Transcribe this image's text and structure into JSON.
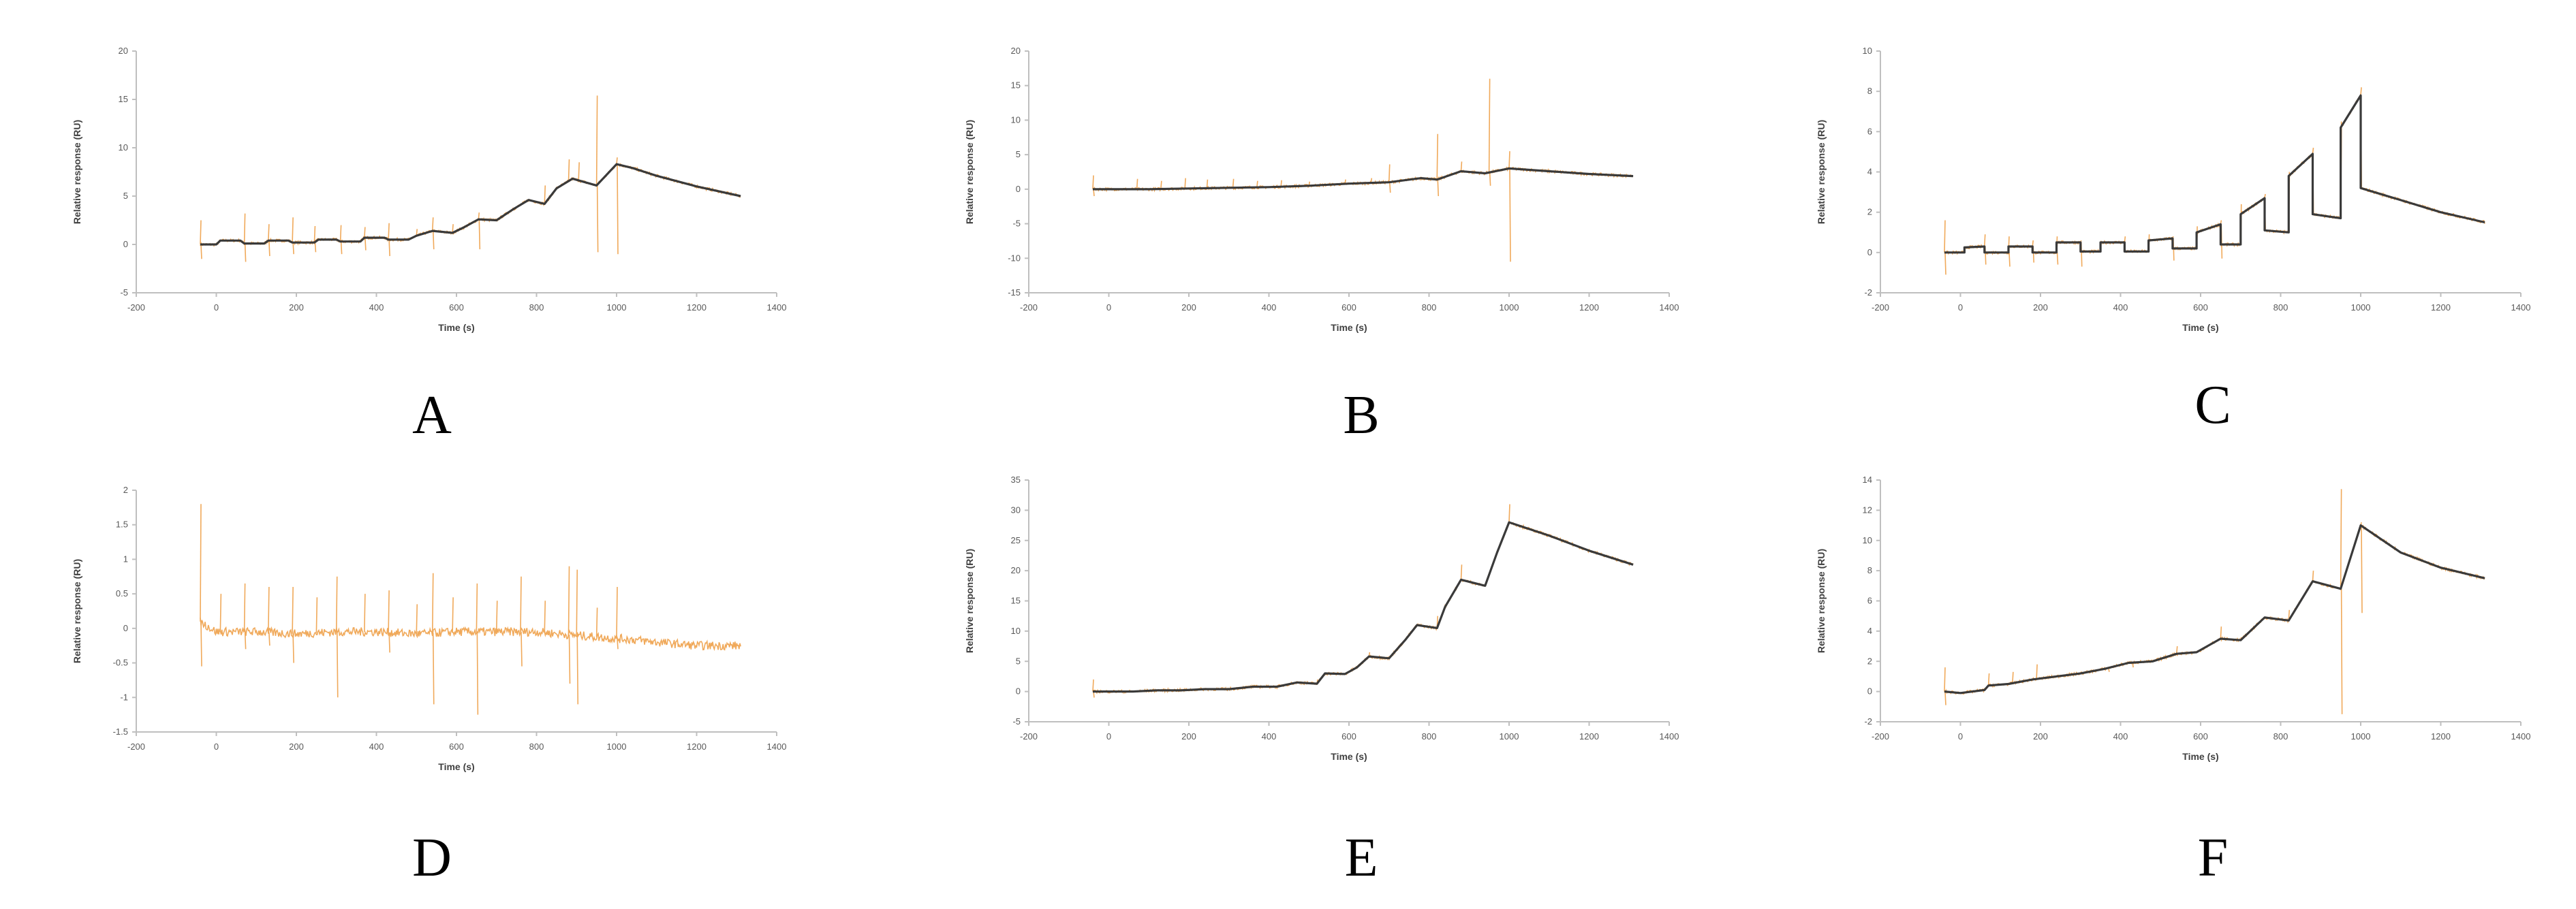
{
  "colors": {
    "data": "#f0a95a",
    "fit": "#3a3a3a",
    "axis": "#bfbfbf",
    "tick": "#595959"
  },
  "chart_data": [
    {
      "panel": "A",
      "type": "line",
      "xlabel": "Time (s)",
      "ylabel": "Relative response (RU)",
      "xlim": [
        -200,
        1400
      ],
      "xticks": [
        -200,
        0,
        200,
        400,
        600,
        800,
        1000,
        1200,
        1400
      ],
      "ylim": [
        -5,
        20
      ],
      "yticks": [
        -5,
        0,
        5,
        10,
        15,
        20
      ],
      "ytick_labels": [
        "-5",
        "0",
        "5",
        "10",
        "15",
        "20"
      ],
      "fit": [
        [
          -40,
          0
        ],
        [
          0,
          0
        ],
        [
          10,
          0.4
        ],
        [
          60,
          0.4
        ],
        [
          70,
          0.1
        ],
        [
          120,
          0.1
        ],
        [
          130,
          0.4
        ],
        [
          180,
          0.4
        ],
        [
          190,
          0.2
        ],
        [
          245,
          0.2
        ],
        [
          255,
          0.5
        ],
        [
          300,
          0.5
        ],
        [
          310,
          0.3
        ],
        [
          360,
          0.3
        ],
        [
          370,
          0.7
        ],
        [
          420,
          0.7
        ],
        [
          430,
          0.5
        ],
        [
          480,
          0.5
        ],
        [
          500,
          0.9
        ],
        [
          540,
          1.4
        ],
        [
          590,
          1.2
        ],
        [
          620,
          1.8
        ],
        [
          655,
          2.6
        ],
        [
          700,
          2.5
        ],
        [
          740,
          3.6
        ],
        [
          780,
          4.6
        ],
        [
          820,
          4.2
        ],
        [
          850,
          5.8
        ],
        [
          890,
          6.8
        ],
        [
          950,
          6.1
        ],
        [
          1000,
          8.3
        ],
        [
          1040,
          7.9
        ],
        [
          1100,
          7.1
        ],
        [
          1200,
          6.0
        ],
        [
          1310,
          5.0
        ]
      ],
      "spikes": [
        [
          -40,
          2.5,
          -1.5
        ],
        [
          70,
          3.2,
          -1.8
        ],
        [
          130,
          2.1,
          -1.2
        ],
        [
          190,
          2.8,
          -1.0
        ],
        [
          245,
          1.9,
          -0.8
        ],
        [
          310,
          2.0,
          -1.0
        ],
        [
          370,
          1.8,
          -0.6
        ],
        [
          430,
          2.2,
          -1.2
        ],
        [
          500,
          1.6
        ],
        [
          540,
          2.8,
          -0.5
        ],
        [
          590,
          2.1
        ],
        [
          655,
          3.3,
          -0.5
        ],
        [
          740,
          3.8
        ],
        [
          820,
          6.1
        ],
        [
          880,
          8.8
        ],
        [
          905,
          8.5
        ],
        [
          950,
          15.4,
          -0.8
        ],
        [
          1000,
          9.0,
          -1.0
        ]
      ]
    },
    {
      "panel": "B",
      "type": "line",
      "xlabel": "Time (s)",
      "ylabel": "Relative response (RU)",
      "xlim": [
        -200,
        1400
      ],
      "xticks": [
        -200,
        0,
        200,
        400,
        600,
        800,
        1000,
        1200,
        1400
      ],
      "ylim": [
        -15,
        20
      ],
      "yticks": [
        -15,
        -10,
        -5,
        0,
        5,
        10,
        15,
        20
      ],
      "ytick_labels": [
        "-15",
        "-10",
        "-5",
        "0",
        "5",
        "10",
        "15",
        "20"
      ],
      "fit": [
        [
          -40,
          0
        ],
        [
          100,
          0
        ],
        [
          200,
          0.1
        ],
        [
          300,
          0.2
        ],
        [
          400,
          0.3
        ],
        [
          500,
          0.5
        ],
        [
          600,
          0.8
        ],
        [
          700,
          1.0
        ],
        [
          780,
          1.6
        ],
        [
          820,
          1.4
        ],
        [
          880,
          2.6
        ],
        [
          940,
          2.3
        ],
        [
          1000,
          3.0
        ],
        [
          1100,
          2.6
        ],
        [
          1200,
          2.2
        ],
        [
          1310,
          1.9
        ]
      ],
      "spikes": [
        [
          -40,
          2.0,
          -1.0
        ],
        [
          70,
          1.5
        ],
        [
          130,
          1.2
        ],
        [
          190,
          1.6
        ],
        [
          245,
          1.4
        ],
        [
          310,
          1.5
        ],
        [
          370,
          1.2
        ],
        [
          430,
          1.3
        ],
        [
          500,
          1.1
        ],
        [
          590,
          1.4
        ],
        [
          655,
          1.6
        ],
        [
          700,
          3.6,
          -0.5
        ],
        [
          820,
          8.0,
          -1.0
        ],
        [
          880,
          4.0
        ],
        [
          950,
          16.0,
          0.5
        ],
        [
          1000,
          5.5,
          -10.5
        ]
      ]
    },
    {
      "panel": "C",
      "type": "line",
      "xlabel": "Time (s)",
      "ylabel": "Relative response (RU)",
      "xlim": [
        -200,
        1400
      ],
      "xticks": [
        -200,
        0,
        200,
        400,
        600,
        800,
        1000,
        1200,
        1400
      ],
      "ylim": [
        -2,
        10
      ],
      "yticks": [
        -2,
        0,
        2,
        4,
        6,
        8,
        10
      ],
      "ytick_labels": [
        "-2",
        "0",
        "2",
        "4",
        "6",
        "8",
        "10"
      ],
      "fit": [
        [
          -40,
          0
        ],
        [
          10,
          0
        ],
        [
          10,
          0.25
        ],
        [
          60,
          0.3
        ],
        [
          60,
          0
        ],
        [
          120,
          0
        ],
        [
          120,
          0.3
        ],
        [
          180,
          0.3
        ],
        [
          180,
          0
        ],
        [
          240,
          0
        ],
        [
          240,
          0.5
        ],
        [
          300,
          0.5
        ],
        [
          300,
          0.05
        ],
        [
          350,
          0.05
        ],
        [
          350,
          0.5
        ],
        [
          410,
          0.5
        ],
        [
          410,
          0.05
        ],
        [
          470,
          0.05
        ],
        [
          470,
          0.6
        ],
        [
          530,
          0.7
        ],
        [
          530,
          0.2
        ],
        [
          590,
          0.2
        ],
        [
          590,
          1.0
        ],
        [
          650,
          1.4
        ],
        [
          650,
          0.4
        ],
        [
          700,
          0.4
        ],
        [
          700,
          1.9
        ],
        [
          760,
          2.7
        ],
        [
          760,
          1.1
        ],
        [
          820,
          1.0
        ],
        [
          820,
          3.8
        ],
        [
          880,
          4.9
        ],
        [
          880,
          1.9
        ],
        [
          950,
          1.7
        ],
        [
          950,
          6.2
        ],
        [
          1000,
          7.8
        ],
        [
          1000,
          3.2
        ],
        [
          1100,
          2.6
        ],
        [
          1200,
          2.0
        ],
        [
          1310,
          1.5
        ]
      ],
      "spikes": [
        [
          -40,
          1.6,
          -1.1
        ],
        [
          60,
          0.9,
          -0.6
        ],
        [
          120,
          0.8,
          -0.7
        ],
        [
          180,
          0.6,
          -0.5
        ],
        [
          240,
          0.8,
          -0.6
        ],
        [
          300,
          0.6,
          -0.7
        ],
        [
          410,
          0.8
        ],
        [
          470,
          0.9
        ],
        [
          530,
          0.8,
          -0.4
        ],
        [
          590,
          1.3
        ],
        [
          650,
          1.6,
          -0.3
        ],
        [
          700,
          2.4
        ],
        [
          760,
          2.9
        ],
        [
          820,
          4.0
        ],
        [
          880,
          5.2
        ],
        [
          950,
          6.5
        ],
        [
          1000,
          8.2
        ]
      ]
    },
    {
      "panel": "D",
      "type": "line",
      "xlabel": "Time (s)",
      "ylabel": "Relative response (RU)",
      "xlim": [
        -200,
        1400
      ],
      "xticks": [
        -200,
        0,
        200,
        400,
        600,
        800,
        1000,
        1200,
        1400
      ],
      "ylim": [
        -1.5,
        2
      ],
      "yticks": [
        -1.5,
        -1,
        -0.5,
        0,
        0.5,
        1,
        1.5,
        2
      ],
      "ytick_labels": [
        "-1.5",
        "-1",
        "-0.5",
        "0",
        "0.5",
        "1",
        "1.5",
        "2"
      ],
      "fit": [],
      "baseline": [
        [
          -40,
          0.1
        ],
        [
          0,
          -0.05
        ],
        [
          100,
          -0.05
        ],
        [
          200,
          -0.08
        ],
        [
          300,
          -0.05
        ],
        [
          400,
          -0.05
        ],
        [
          500,
          -0.08
        ],
        [
          600,
          -0.05
        ],
        [
          700,
          -0.05
        ],
        [
          800,
          -0.05
        ],
        [
          900,
          -0.1
        ],
        [
          1000,
          -0.15
        ],
        [
          1010,
          -0.15
        ],
        [
          1020,
          -0.15
        ],
        [
          1100,
          -0.2
        ],
        [
          1200,
          -0.25
        ],
        [
          1310,
          -0.25
        ]
      ],
      "spikes": [
        [
          -40,
          1.8,
          -0.55
        ],
        [
          10,
          0.5
        ],
        [
          70,
          0.65,
          -0.3
        ],
        [
          130,
          0.6,
          -0.25
        ],
        [
          190,
          0.6,
          -0.5
        ],
        [
          250,
          0.45
        ],
        [
          300,
          0.75,
          -1.0
        ],
        [
          370,
          0.5
        ],
        [
          430,
          0.55,
          -0.35
        ],
        [
          500,
          0.35
        ],
        [
          540,
          0.8,
          -1.1
        ],
        [
          590,
          0.45
        ],
        [
          650,
          0.65,
          -1.25
        ],
        [
          700,
          0.4
        ],
        [
          760,
          0.75,
          -0.55
        ],
        [
          820,
          0.4
        ],
        [
          880,
          0.9,
          -0.8
        ],
        [
          900,
          0.85,
          -1.1
        ],
        [
          950,
          0.3
        ],
        [
          1000,
          0.6,
          -0.3
        ]
      ]
    },
    {
      "panel": "E",
      "type": "line",
      "xlabel": "Time (s)",
      "ylabel": "Relative response (RU)",
      "xlim": [
        -200,
        1400
      ],
      "xticks": [
        -200,
        0,
        200,
        400,
        600,
        800,
        1000,
        1200,
        1400
      ],
      "ylim": [
        -5,
        35
      ],
      "yticks": [
        -5,
        0,
        5,
        10,
        15,
        20,
        25,
        30,
        35
      ],
      "ytick_labels": [
        "-5",
        "0",
        "5",
        "10",
        "15",
        "20",
        "25",
        "30",
        "35"
      ],
      "fit": [
        [
          -40,
          0
        ],
        [
          60,
          0
        ],
        [
          120,
          0.2
        ],
        [
          180,
          0.2
        ],
        [
          240,
          0.4
        ],
        [
          300,
          0.4
        ],
        [
          360,
          0.8
        ],
        [
          420,
          0.8
        ],
        [
          470,
          1.5
        ],
        [
          520,
          1.3
        ],
        [
          540,
          3.0
        ],
        [
          590,
          2.9
        ],
        [
          620,
          4.0
        ],
        [
          650,
          5.8
        ],
        [
          700,
          5.5
        ],
        [
          740,
          8.5
        ],
        [
          770,
          11
        ],
        [
          820,
          10.5
        ],
        [
          840,
          14
        ],
        [
          880,
          18.5
        ],
        [
          940,
          17.5
        ],
        [
          970,
          23
        ],
        [
          1000,
          28
        ],
        [
          1100,
          25.8
        ],
        [
          1200,
          23.3
        ],
        [
          1310,
          21
        ]
      ],
      "spikes": [
        [
          -40,
          2.0,
          -1.0
        ],
        [
          520,
          2.0
        ],
        [
          650,
          6.5
        ],
        [
          820,
          12.5
        ],
        [
          880,
          21
        ],
        [
          1000,
          31
        ]
      ]
    },
    {
      "panel": "F",
      "type": "line",
      "xlabel": "Time (s)",
      "ylabel": "Relative response (RU)",
      "xlim": [
        -200,
        1400
      ],
      "xticks": [
        -200,
        0,
        200,
        400,
        600,
        800,
        1000,
        1200,
        1400
      ],
      "ylim": [
        -2,
        14
      ],
      "yticks": [
        -2,
        0,
        2,
        4,
        6,
        8,
        10,
        12,
        14
      ],
      "ytick_labels": [
        "-2",
        "0",
        "2",
        "4",
        "6",
        "8",
        "10",
        "12",
        "14"
      ],
      "fit": [
        [
          -40,
          0
        ],
        [
          0,
          -0.1
        ],
        [
          60,
          0.1
        ],
        [
          70,
          0.4
        ],
        [
          120,
          0.5
        ],
        [
          180,
          0.8
        ],
        [
          240,
          1.0
        ],
        [
          300,
          1.2
        ],
        [
          360,
          1.5
        ],
        [
          420,
          1.9
        ],
        [
          480,
          2.0
        ],
        [
          540,
          2.5
        ],
        [
          590,
          2.6
        ],
        [
          650,
          3.5
        ],
        [
          700,
          3.4
        ],
        [
          760,
          4.9
        ],
        [
          820,
          4.7
        ],
        [
          880,
          7.3
        ],
        [
          950,
          6.8
        ],
        [
          1000,
          11.0
        ],
        [
          1100,
          9.2
        ],
        [
          1200,
          8.2
        ],
        [
          1310,
          7.5
        ]
      ],
      "spikes": [
        [
          -40,
          1.6,
          -0.9
        ],
        [
          70,
          1.2
        ],
        [
          130,
          1.3
        ],
        [
          190,
          1.8
        ],
        [
          250,
          1.1
        ],
        [
          310,
          1.2
        ],
        [
          370,
          1.3
        ],
        [
          430,
          1.6
        ],
        [
          500,
          2.2
        ],
        [
          540,
          3.0
        ],
        [
          650,
          4.3
        ],
        [
          700,
          3.6
        ],
        [
          820,
          5.4
        ],
        [
          880,
          8.0
        ],
        [
          950,
          13.4,
          -1.5
        ],
        [
          1000,
          11.2,
          5.2
        ]
      ]
    }
  ],
  "panel_labels": [
    "A",
    "B",
    "C",
    "D",
    "E",
    "F"
  ]
}
